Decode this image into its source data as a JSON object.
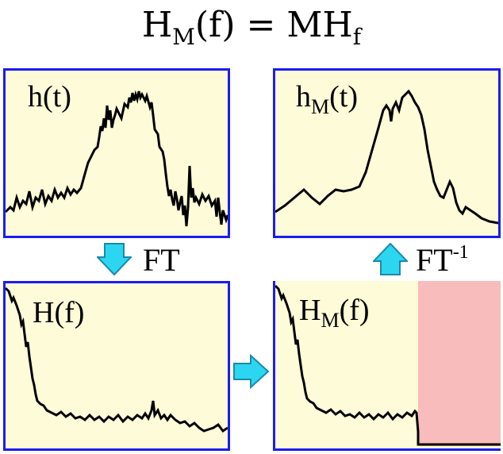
{
  "title": {
    "main": "H",
    "sub": "M",
    "rest": "(f) = MH",
    "sub2": "f"
  },
  "panels": {
    "top_left": {
      "label": "h(t)"
    },
    "top_right": {
      "label_main": "h",
      "label_sub": "M",
      "label_rest": "(t)"
    },
    "bottom_left": {
      "label": "H(f)"
    },
    "bottom_right": {
      "label_main": "H",
      "label_sub": "M",
      "label_rest": "(f)"
    }
  },
  "operations": {
    "forward": {
      "label": "FT"
    },
    "inverse": {
      "label": "FT",
      "superscript": "-1"
    }
  },
  "colors": {
    "panel_bg": "#fefbd8",
    "panel_border": "#1c1cf0",
    "arrow_fill": "#2cd6f0",
    "arrow_stroke": "#1a8aa8",
    "mask_fill": "#f8bcbc"
  },
  "icons": [
    "down-arrow-icon",
    "up-arrow-icon",
    "right-arrow-icon"
  ]
}
